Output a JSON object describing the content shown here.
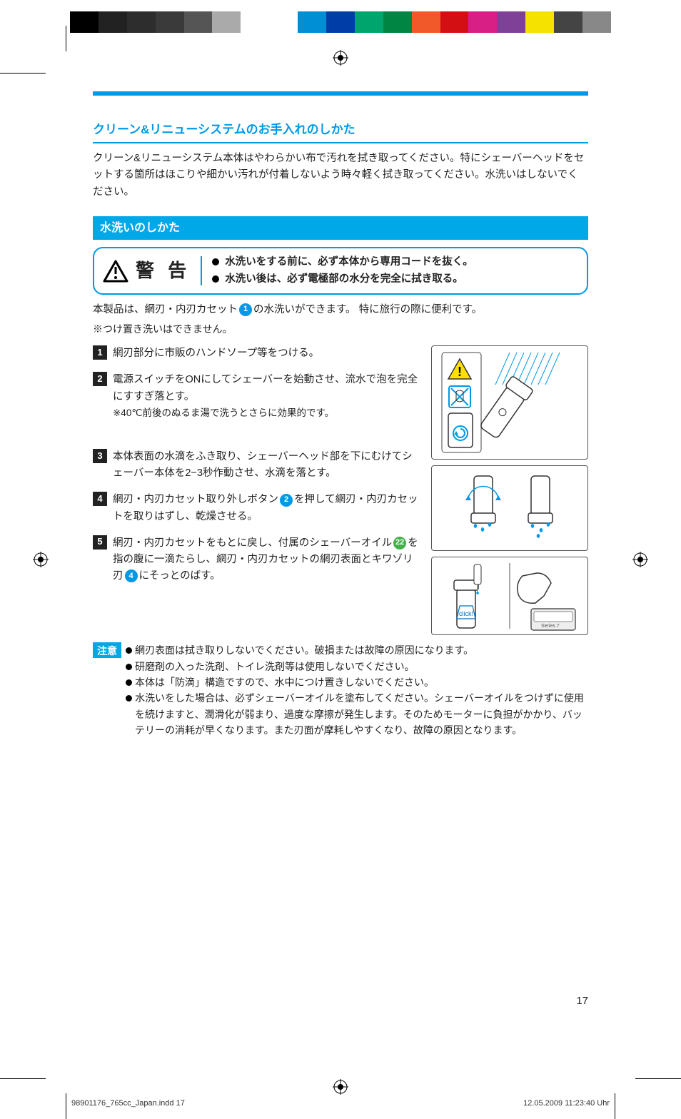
{
  "colorbar": [
    "#000000",
    "#222222",
    "#2d2d2d",
    "#3a3a3a",
    "#555555",
    "#aaaaaa",
    "#ffffff",
    "#ffffff",
    "#008fd5",
    "#003da6",
    "#00a46d",
    "#008542",
    "#f1592a",
    "#d40f14",
    "#d71f85",
    "#7f4098",
    "#f6e200",
    "#444444",
    "#888888"
  ],
  "section_title": "クリーン&リニューシステムのお手入れのしかた",
  "intro": "クリーン&リニューシステム本体はやわらかい布で汚れを拭き取ってください。特にシェーバーヘッドをセットする箇所はほこりや細かい汚れが付着しないよう時々軽く拭き取ってください。水洗いはしないでください。",
  "sub_header": "水洗いのしかた",
  "warning": {
    "label": "警 告",
    "lines": [
      "水洗いをする前に、必ず本体から専用コードを抜く。",
      "水洗い後は、必ず電極部の水分を完全に拭き取る。"
    ]
  },
  "body1_a": "本製品は、網刃・内刃カセット",
  "body1_num": "1",
  "body1_b": "の水洗いができます。 特に旅行の際に便利です。",
  "body1_note": "※つけ置き洗いはできません。",
  "steps": [
    {
      "n": "1",
      "text": "網刃部分に市販のハンドソープ等をつける。"
    },
    {
      "n": "2",
      "text": "電源スイッチをONにしてシェーバーを始動させ、流水で泡を完全にすすぎ落とす。",
      "sub": "※40℃前後のぬるま湯で洗うとさらに効果的です。"
    },
    {
      "n": "3",
      "text": "本体表面の水滴をふき取り、シェーバーヘッド部を下にむけてシェーバー本体を2−3秒作動させ、水滴を落とす。"
    },
    {
      "n": "4",
      "text_a": "網刃・内刃カセット取り外しボタン",
      "ref": "2",
      "text_b": "を押して網刃・内刃カセットを取りはずし、乾燥させる。"
    },
    {
      "n": "5",
      "text_a": "網刃・内刃カセットをもとに戻し、付属のシェーバーオイル",
      "ref1": "22",
      "ref1_color": "green",
      "text_b": "を指の腹に一滴たらし、網刃・内刃カセットの網刃表面とキワゾリ刃",
      "ref2": "4",
      "text_c": "にそっとのばす。"
    }
  ],
  "illus_click": "click!",
  "illus_series": "Series 7",
  "caution": {
    "tag": "注意",
    "items": [
      "網刃表面は拭き取りしないでください。破損または故障の原因になります。",
      "研磨剤の入った洗剤、トイレ洗剤等は使用しないでください。",
      "本体は「防滴」構造ですので、水中につけ置きしないでください。",
      "水洗いをした場合は、必ずシェーバーオイルを塗布してください。シェーバーオイルをつけずに使用を続けますと、潤滑化が弱まり、過度な摩擦が発生します。そのためモーターに負担がかかり、バッテリーの消耗が早くなります。また刃面が摩耗しやすくなり、故障の原因となります。"
    ]
  },
  "page_number": "17",
  "footer_left": "98901176_765cc_Japan.indd   17",
  "footer_right": "12.05.2009   11:23:40 Uhr"
}
